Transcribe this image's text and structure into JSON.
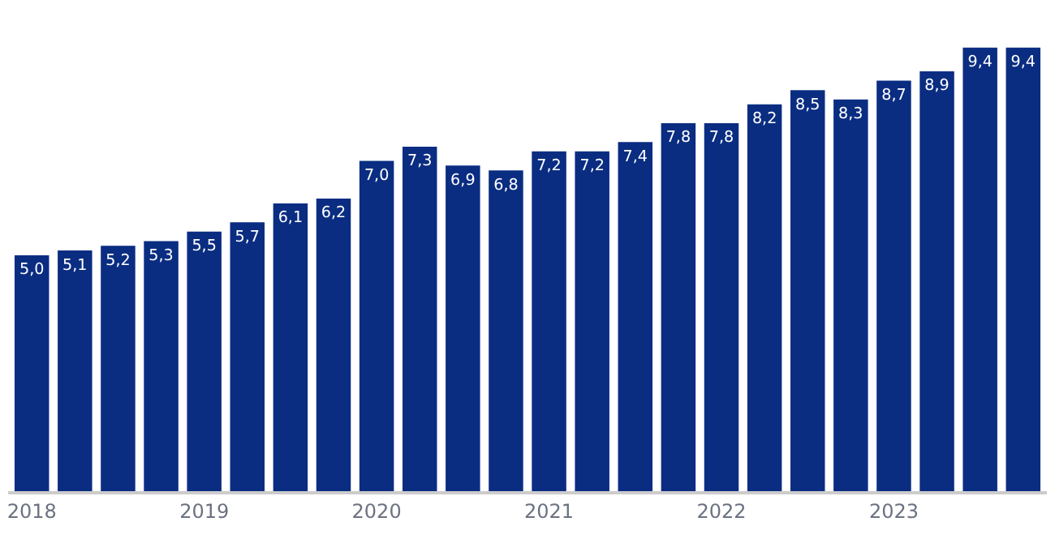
{
  "chart_data": {
    "type": "bar",
    "categories": [
      "2018",
      null,
      null,
      null,
      "2019",
      null,
      null,
      null,
      "2020",
      null,
      null,
      null,
      "2021",
      null,
      null,
      null,
      "2022",
      null,
      null,
      null,
      "2023",
      null,
      null,
      null
    ],
    "values": [
      5.0,
      5.1,
      5.2,
      5.3,
      5.5,
      5.7,
      6.1,
      6.2,
      7.0,
      7.3,
      6.9,
      6.8,
      7.2,
      7.2,
      7.4,
      7.8,
      7.8,
      8.2,
      8.5,
      8.3,
      8.7,
      8.9,
      9.4,
      9.4
    ],
    "value_labels": [
      "5,0",
      "5,1",
      "5,2",
      "5,3",
      "5,5",
      "5,7",
      "6,1",
      "6,2",
      "7,0",
      "7,3",
      "6,9",
      "6,8",
      "7,2",
      "7,2",
      "7,4",
      "7,8",
      "7,8",
      "8,2",
      "8,5",
      "8,3",
      "8,7",
      "8,9",
      "9,4",
      "9,4"
    ],
    "color": "#0a2d82"
  }
}
